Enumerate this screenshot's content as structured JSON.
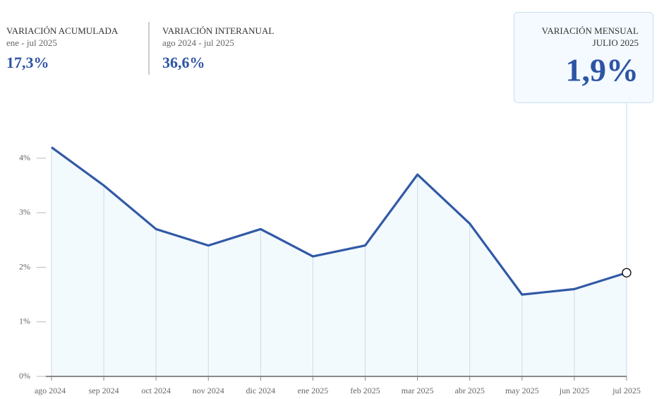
{
  "header": {
    "cards": [
      {
        "title": "VARIACIÓN ACUMULADA",
        "period": "ene - jul 2025",
        "value": "17,3%"
      },
      {
        "title": "VARIACIÓN INTERANUAL",
        "period": "ago 2024 - jul 2025",
        "value": "36,6%"
      },
      {
        "title": "VARIACIÓN MENSUAL",
        "period": "JULIO 2025",
        "value": "1,9%"
      }
    ]
  },
  "chart_data": {
    "type": "area-line",
    "categories": [
      "ago 2024",
      "sep 2024",
      "oct 2024",
      "nov 2024",
      "dic 2024",
      "ene 2025",
      "feb 2025",
      "mar 2025",
      "abr 2025",
      "may 2025",
      "jun 2025",
      "jul 2025"
    ],
    "values": [
      4.2,
      3.5,
      2.7,
      2.4,
      2.7,
      2.2,
      2.4,
      3.7,
      2.8,
      1.5,
      1.6,
      1.9
    ],
    "color": "#3159a6",
    "fill": "#f3fafd",
    "ylim": [
      0,
      4.5
    ],
    "yticks": [
      {
        "value": 0,
        "label": "0%"
      },
      {
        "value": 1,
        "label": "1%"
      },
      {
        "value": 2,
        "label": "2%"
      },
      {
        "value": 3,
        "label": "3%"
      },
      {
        "value": 4,
        "label": "4%"
      }
    ]
  }
}
